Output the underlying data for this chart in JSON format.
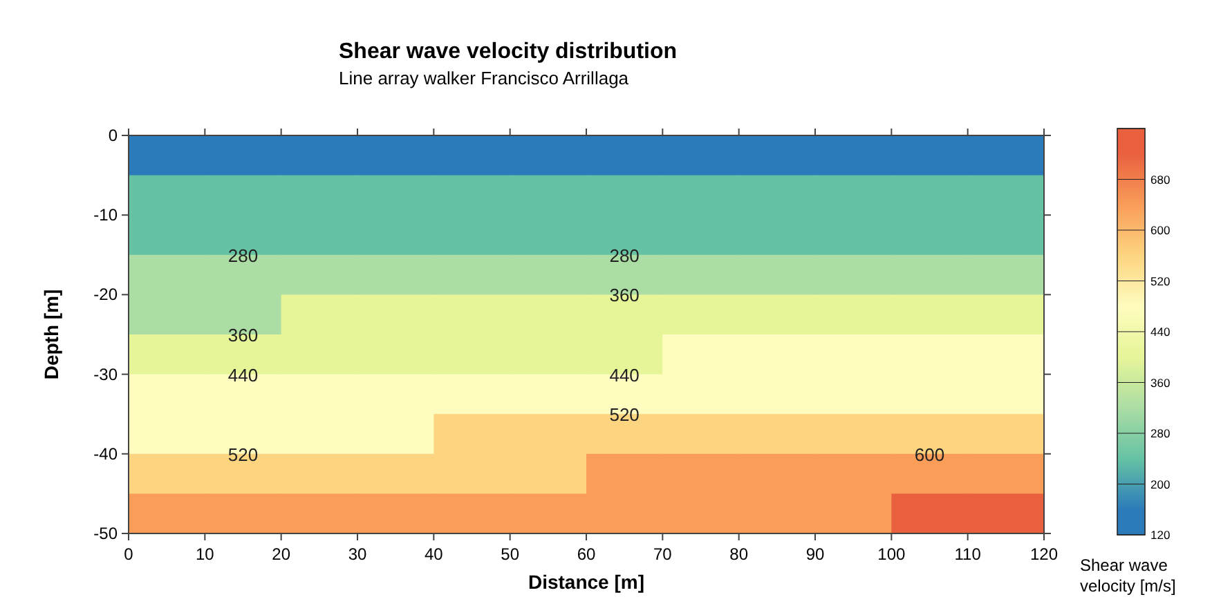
{
  "chart_data": {
    "type": "heatmap",
    "title": "Shear wave velocity distribution",
    "subtitle": "Line array walker Francisco Arrillaga",
    "xlabel": "Distance [m]",
    "ylabel": "Depth [m]",
    "clabel": "Shear wave velocity [m/s]",
    "xlim": [
      0,
      120
    ],
    "xticks": [
      0,
      10,
      20,
      30,
      40,
      50,
      60,
      70,
      80,
      90,
      100,
      110,
      120
    ],
    "ylim": [
      -50,
      0
    ],
    "yticks": [
      -50,
      -40,
      -30,
      -20,
      -10,
      0
    ],
    "clim": [
      120,
      760
    ],
    "cticks": [
      120,
      200,
      280,
      360,
      440,
      520,
      600,
      680
    ],
    "colors": [
      "#2b7bba",
      "#66c2a4",
      "#abdda4",
      "#e6f598",
      "#fefcbf",
      "#fdd580",
      "#f99d59",
      "#e9603f"
    ],
    "cells": [
      [
        160,
        160,
        160,
        160,
        160,
        160,
        160,
        160,
        160,
        160,
        160,
        160
      ],
      [
        240,
        240,
        240,
        240,
        240,
        240,
        240,
        240,
        240,
        240,
        240,
        240
      ],
      [
        240,
        240,
        240,
        240,
        240,
        240,
        240,
        240,
        240,
        240,
        240,
        240
      ],
      [
        320,
        320,
        320,
        320,
        320,
        320,
        320,
        320,
        320,
        320,
        320,
        320
      ],
      [
        320,
        320,
        400,
        400,
        400,
        400,
        400,
        400,
        400,
        400,
        400,
        400
      ],
      [
        400,
        400,
        400,
        400,
        400,
        400,
        400,
        480,
        480,
        480,
        480,
        480
      ],
      [
        480,
        480,
        480,
        480,
        480,
        480,
        480,
        480,
        480,
        480,
        480,
        480
      ],
      [
        480,
        480,
        480,
        480,
        560,
        560,
        560,
        560,
        560,
        560,
        560,
        560
      ],
      [
        560,
        560,
        560,
        560,
        560,
        560,
        640,
        640,
        640,
        640,
        640,
        640
      ],
      [
        640,
        640,
        640,
        640,
        640,
        640,
        640,
        640,
        640,
        640,
        720,
        720
      ]
    ],
    "annotations": [
      "280",
      "280",
      "360",
      "360",
      "440",
      "440",
      "520",
      "520",
      "600"
    ]
  }
}
